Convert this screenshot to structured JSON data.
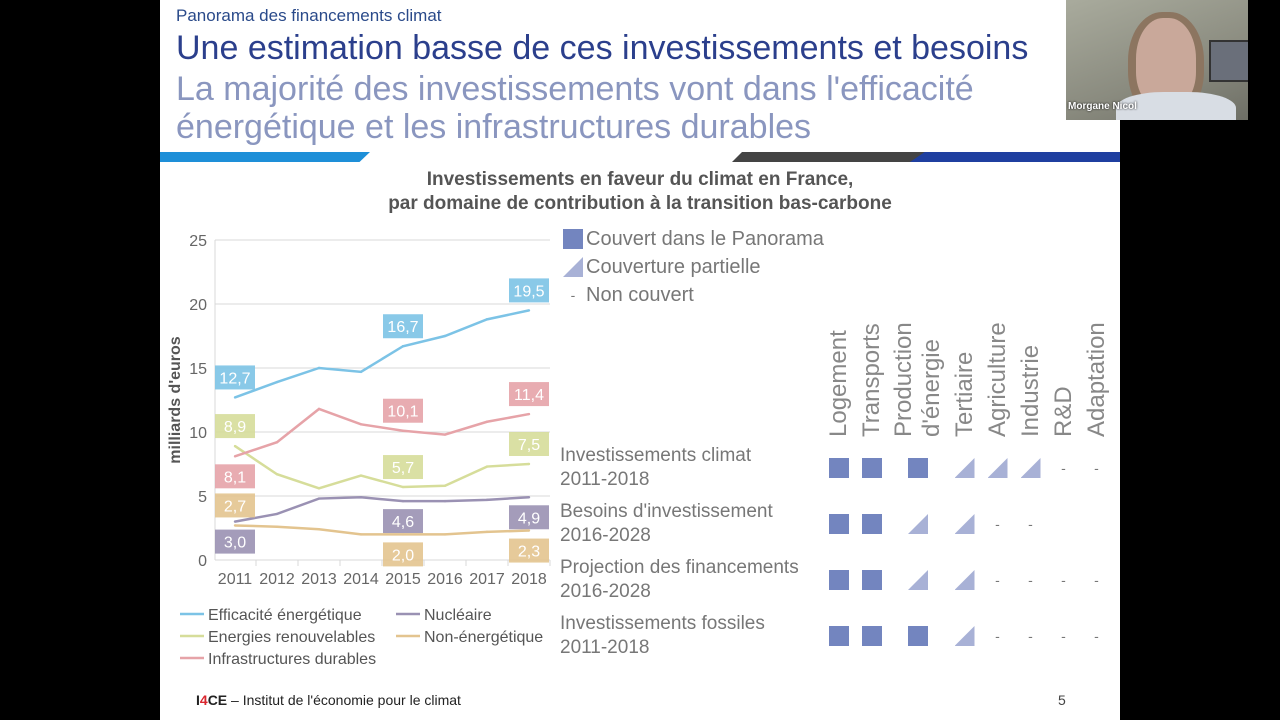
{
  "slide": {
    "subtitle": "Panorama des financements climat",
    "title_a": "Une estimation basse de ces investissements et besoins",
    "title_b": "La majorité des investissements vont dans l'efficacité énergétique et les infrastructures durables",
    "footer_brand_prefix": "I",
    "footer_brand_four": "4",
    "footer_brand_suffix": "CE",
    "footer_text": " – Institut de l'économie pour le climat",
    "page_number": "5",
    "accent_colors": {
      "light_blue": "#1e8fd8",
      "dark_blue": "#1f3fa0",
      "gray": "#444444"
    }
  },
  "webcam": {
    "participant_name": "Morgane Nicol"
  },
  "chart_data": {
    "type": "line",
    "title_line1": "Investissements en faveur du climat en France,",
    "title_line2": "par domaine de contribution à la transition bas-carbone",
    "ylabel": "milliards d'euros",
    "ylim": [
      0,
      25
    ],
    "yticks": [
      "0",
      "5",
      "10",
      "15",
      "20",
      "25"
    ],
    "categories": [
      "2011",
      "2012",
      "2013",
      "2014",
      "2015",
      "2016",
      "2017",
      "2018"
    ],
    "grid": true,
    "legend_position": "right",
    "series": [
      {
        "name": "Efficacité énergétique",
        "color": "#7cc3e6",
        "values": [
          12.7,
          13.9,
          15.0,
          14.7,
          16.7,
          17.5,
          18.8,
          19.5
        ],
        "labels": [
          {
            "index": 0,
            "text": "12,7"
          },
          {
            "index": 4,
            "text": "16,7"
          },
          {
            "index": 7,
            "text": "19,5"
          }
        ]
      },
      {
        "name": "Energies renouvelables",
        "color": "#d6dd9a",
        "values": [
          8.9,
          6.7,
          5.6,
          6.6,
          5.7,
          5.8,
          7.3,
          7.5
        ],
        "labels": [
          {
            "index": 0,
            "text": "8,9"
          },
          {
            "index": 4,
            "text": "5,7"
          },
          {
            "index": 7,
            "text": "7,5"
          }
        ]
      },
      {
        "name": "Infrastructures durables",
        "color": "#e6a3a8",
        "values": [
          8.1,
          9.2,
          11.8,
          10.6,
          10.1,
          9.8,
          10.8,
          11.4
        ],
        "labels": [
          {
            "index": 0,
            "text": "8,1"
          },
          {
            "index": 4,
            "text": "10,1"
          },
          {
            "index": 7,
            "text": "11,4"
          }
        ]
      },
      {
        "name": "Nucléaire",
        "color": "#9a91b3",
        "values": [
          3.0,
          3.6,
          4.8,
          4.9,
          4.6,
          4.6,
          4.7,
          4.9
        ],
        "labels": [
          {
            "index": 0,
            "text": "3,0"
          },
          {
            "index": 4,
            "text": "4,6"
          },
          {
            "index": 7,
            "text": "4,9"
          }
        ]
      },
      {
        "name": "Non-énergétique",
        "color": "#e3c48f",
        "values": [
          2.7,
          2.6,
          2.4,
          2.0,
          2.0,
          2.0,
          2.2,
          2.3
        ],
        "labels": [
          {
            "index": 0,
            "text": "2,7"
          },
          {
            "index": 4,
            "text": "2,0"
          },
          {
            "index": 7,
            "text": "2,3"
          }
        ]
      }
    ]
  },
  "coverage_overlay": {
    "legend": [
      {
        "symbol": "full",
        "label": "Couvert dans le Panorama"
      },
      {
        "symbol": "partial",
        "label": "Couverture partielle"
      },
      {
        "symbol": "none",
        "label": "Non couvert"
      }
    ],
    "columns": [
      "Logement",
      "Transports",
      "Production d'énergie",
      "Tertiaire",
      "Agriculture",
      "Industrie",
      "R&D",
      "Adaptation"
    ],
    "rows": [
      {
        "label": "Investissements climat 2011-2018",
        "cells": [
          "full",
          "full",
          "full",
          "partial",
          "partial",
          "partial",
          "none",
          "none"
        ]
      },
      {
        "label": "Besoins d'investissement 2016-2028",
        "cells": [
          "full",
          "full",
          "partial",
          "partial",
          "none",
          "none",
          "",
          ""
        ]
      },
      {
        "label": "Projection des financements 2016-2028",
        "cells": [
          "full",
          "full",
          "partial",
          "partial",
          "none",
          "none",
          "none",
          "none"
        ]
      },
      {
        "label": "Investissements fossiles 2011-2018",
        "cells": [
          "full",
          "full",
          "full",
          "partial",
          "none",
          "none",
          "none",
          "none"
        ]
      }
    ],
    "none_symbol": "-"
  }
}
